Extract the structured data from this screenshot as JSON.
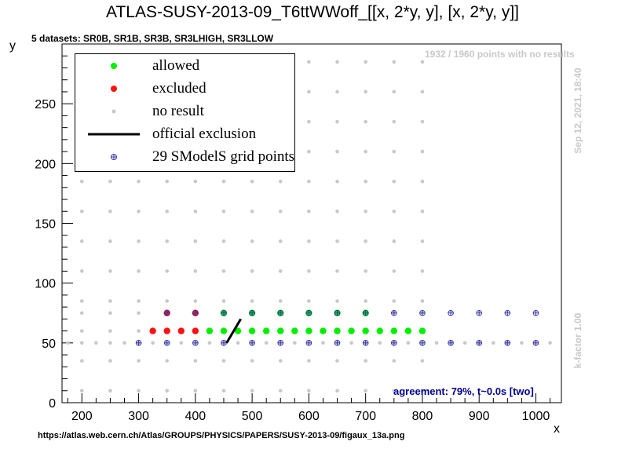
{
  "title": "ATLAS-SUSY-2013-09_T6ttWWoff_[[x, 2*y, y], [x, 2*y, y]]",
  "subtitle": "5 datasets: SR0B, SR1B, SR3B, SR3LHIGH, SR3LLOW",
  "no_result_note": "1932 / 1960 points with no results",
  "agreement": "agreement: 79%, t~0.0s [two]",
  "date_stamp": "Sep 12, 2021, 18:40",
  "k_factor": "k-factor 1.00",
  "source_url": "https://atlas.web.cern.ch/Atlas/GROUPS/PHYSICS/PAPERS/SUSY-2013-09/figaux_13a.png",
  "legend": [
    {
      "symbol": "allowed",
      "label": "allowed"
    },
    {
      "symbol": "excluded",
      "label": "excluded"
    },
    {
      "symbol": "noresult",
      "label": "no result"
    },
    {
      "symbol": "line",
      "label": "official exclusion"
    },
    {
      "symbol": "grid",
      "label": "29 SModelS grid points"
    }
  ],
  "colors": {
    "allowed": "#00ee00",
    "excluded": "#ff1111",
    "noresult": "#c8c8c8",
    "grid": "#3333aa",
    "exclusion": "#000000"
  },
  "chart_data": {
    "type": "scatter",
    "xlabel": "x",
    "ylabel": "y",
    "xlim": [
      165,
      1045
    ],
    "ylim": [
      0,
      300
    ],
    "xticks": [
      200,
      300,
      400,
      500,
      600,
      700,
      800,
      900,
      1000
    ],
    "yticks": [
      0,
      50,
      100,
      150,
      200,
      250
    ],
    "grey_x": [
      200,
      250,
      300,
      350,
      400,
      450,
      500,
      550,
      600,
      650,
      700,
      750,
      800
    ],
    "grey_y": [
      10,
      35,
      60,
      85,
      110,
      135,
      160,
      185,
      210,
      235,
      260,
      285
    ],
    "grey_row50_x": [
      175,
      200,
      225,
      250,
      275,
      300,
      325,
      350,
      375,
      400,
      425,
      450,
      475,
      500,
      525,
      550,
      575,
      600,
      625,
      650,
      675,
      700,
      725,
      750,
      775,
      800,
      825,
      850,
      875,
      900,
      925,
      950,
      975,
      1000,
      1025
    ],
    "grey_row75_x": [
      200,
      250,
      300,
      350,
      400,
      450,
      500,
      550,
      600,
      650,
      700,
      750,
      800
    ],
    "allowed": [
      [
        425,
        60
      ],
      [
        450,
        60
      ],
      [
        475,
        60
      ],
      [
        500,
        60
      ],
      [
        525,
        60
      ],
      [
        550,
        60
      ],
      [
        575,
        60
      ],
      [
        600,
        60
      ],
      [
        625,
        60
      ],
      [
        650,
        60
      ],
      [
        675,
        60
      ],
      [
        700,
        60
      ],
      [
        725,
        60
      ],
      [
        750,
        60
      ],
      [
        775,
        60
      ],
      [
        800,
        60
      ],
      [
        450,
        75
      ],
      [
        500,
        75
      ],
      [
        550,
        75
      ],
      [
        600,
        75
      ],
      [
        650,
        75
      ],
      [
        700,
        75
      ]
    ],
    "excluded": [
      [
        325,
        60
      ],
      [
        350,
        60
      ],
      [
        375,
        60
      ],
      [
        400,
        60
      ],
      [
        350,
        75
      ],
      [
        400,
        75
      ]
    ],
    "grid_points": [
      [
        300,
        50
      ],
      [
        350,
        50
      ],
      [
        400,
        50
      ],
      [
        450,
        50
      ],
      [
        500,
        50
      ],
      [
        550,
        50
      ],
      [
        600,
        50
      ],
      [
        650,
        50
      ],
      [
        700,
        50
      ],
      [
        750,
        50
      ],
      [
        800,
        50
      ],
      [
        850,
        50
      ],
      [
        900,
        50
      ],
      [
        950,
        50
      ],
      [
        1000,
        50
      ],
      [
        350,
        75
      ],
      [
        400,
        75
      ],
      [
        450,
        75
      ],
      [
        500,
        75
      ],
      [
        550,
        75
      ],
      [
        600,
        75
      ],
      [
        650,
        75
      ],
      [
        700,
        75
      ],
      [
        750,
        75
      ],
      [
        800,
        75
      ],
      [
        850,
        75
      ],
      [
        900,
        75
      ],
      [
        950,
        75
      ],
      [
        1000,
        75
      ]
    ],
    "official_exclusion": [
      [
        455,
        50
      ],
      [
        480,
        70
      ]
    ]
  }
}
